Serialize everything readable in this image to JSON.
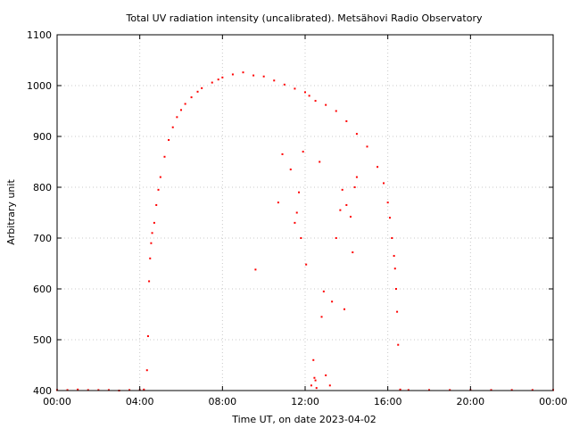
{
  "chart_data": {
    "type": "scatter",
    "title": "Total UV radiation intensity (uncalibrated). Metsähovi Radio Observatory",
    "xlabel": "Time UT, on date 2023-04-02",
    "ylabel": "Arbitrary unit",
    "xlim": [
      0,
      24
    ],
    "ylim": [
      400,
      1100
    ],
    "x_ticks": [
      {
        "value": 0,
        "label": "00:00"
      },
      {
        "value": 4,
        "label": "04:00"
      },
      {
        "value": 8,
        "label": "08:00"
      },
      {
        "value": 12,
        "label": "12:00"
      },
      {
        "value": 16,
        "label": "16:00"
      },
      {
        "value": 20,
        "label": "20:00"
      },
      {
        "value": 24,
        "label": "00:00"
      }
    ],
    "y_ticks": [
      400,
      500,
      600,
      700,
      800,
      900,
      1000,
      1100
    ],
    "grid": true,
    "marker_color": "#ff0000",
    "series": [
      {
        "x": [
          0.0,
          0.5,
          1.0,
          1.5,
          2.0,
          2.5,
          3.0,
          3.5,
          4.0,
          4.2,
          4.35,
          4.4,
          4.45,
          4.5,
          4.55,
          4.6,
          4.7,
          4.8,
          4.9,
          5.0,
          5.2,
          5.4,
          5.6,
          5.8,
          6.0,
          6.2,
          6.5,
          6.8,
          7.0,
          7.5,
          7.8,
          8.0,
          8.5,
          9.0,
          9.5,
          10.0,
          10.5,
          11.0,
          11.5,
          12.0,
          12.2,
          12.5,
          13.0,
          13.5,
          14.0,
          14.5,
          15.0,
          15.5,
          15.8,
          16.0,
          16.1,
          16.2,
          16.3,
          16.35,
          16.4,
          16.45,
          16.5,
          16.6,
          17.0,
          18.0,
          19.0,
          20.0,
          21.0,
          22.0,
          23.0,
          24.0,
          9.6,
          10.7,
          10.9,
          11.3,
          11.5,
          11.6,
          11.7,
          11.8,
          11.9,
          12.05,
          12.3,
          12.4,
          12.45,
          12.5,
          12.55,
          12.7,
          12.8,
          12.9,
          13.0,
          13.2,
          13.3,
          13.5,
          13.7,
          13.8,
          13.9,
          14.0,
          14.2,
          14.3,
          14.4,
          14.5
        ],
        "y": [
          401,
          401,
          402,
          401,
          401,
          401,
          400,
          401,
          401,
          402,
          440,
          507,
          615,
          660,
          690,
          710,
          730,
          765,
          795,
          820,
          860,
          893,
          918,
          938,
          952,
          964,
          977,
          988,
          995,
          1006,
          1012,
          1016,
          1022,
          1026,
          1020,
          1018,
          1010,
          1002,
          994,
          987,
          980,
          970,
          962,
          950,
          930,
          905,
          880,
          840,
          808,
          770,
          740,
          700,
          665,
          640,
          600,
          555,
          490,
          402,
          401,
          401,
          401,
          401,
          401,
          401,
          401,
          401,
          638,
          770,
          865,
          835,
          730,
          750,
          790,
          700,
          870,
          648,
          410,
          460,
          425,
          420,
          405,
          850,
          545,
          595,
          430,
          410,
          575,
          700,
          755,
          795,
          560,
          765,
          742,
          672,
          800,
          820
        ]
      }
    ]
  }
}
